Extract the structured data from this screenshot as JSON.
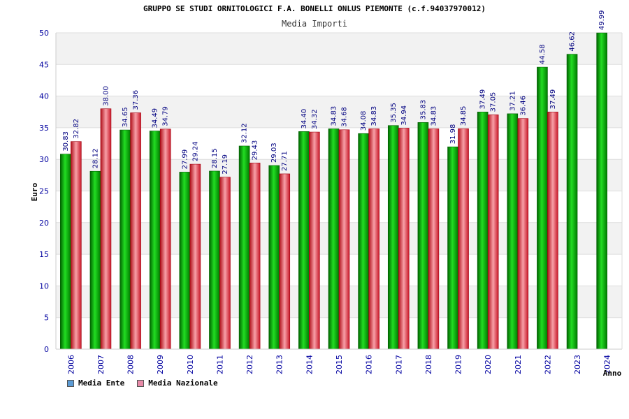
{
  "chart_data": {
    "type": "bar",
    "title": "GRUPPO SE STUDI ORNITOLOGICI F.A. BONELLI ONLUS PIEMONTE (c.f.94037970012)",
    "subtitle": "Media Importi",
    "ylabel": "Euro",
    "xlabel": "Anno",
    "ylim": [
      0,
      50
    ],
    "yticks": [
      0,
      5,
      10,
      15,
      20,
      25,
      30,
      35,
      40,
      45,
      50
    ],
    "categories": [
      "2006",
      "2007",
      "2008",
      "2009",
      "2010",
      "2011",
      "2012",
      "2013",
      "2014",
      "2015",
      "2016",
      "2017",
      "2018",
      "2019",
      "2020",
      "2021",
      "2022",
      "2023",
      "2024"
    ],
    "series": [
      {
        "name": "Media Ente",
        "values": [
          30.83,
          28.12,
          34.65,
          34.49,
          27.99,
          28.15,
          32.12,
          29.03,
          34.4,
          34.83,
          34.08,
          35.35,
          35.83,
          31.98,
          37.49,
          37.21,
          44.58,
          46.62,
          49.99
        ],
        "labels": [
          "30.83",
          "28.12",
          "34.65",
          "34.49",
          "27.99",
          "28.15",
          "32.12",
          "29.03",
          "34.40",
          "34.83",
          "34.08",
          "35.35",
          "35.83",
          "31.98",
          "37.49",
          "37.21",
          "44.58",
          "46.62",
          "49.99"
        ]
      },
      {
        "name": "Media Nazionale",
        "values": [
          32.82,
          38.0,
          37.36,
          34.79,
          29.24,
          27.19,
          29.43,
          27.71,
          34.32,
          34.68,
          34.83,
          34.94,
          34.83,
          34.85,
          37.05,
          36.46,
          37.49,
          null,
          null
        ],
        "labels": [
          "32.82",
          "38.00",
          "37.36",
          "34.79",
          "29.24",
          "27.19",
          "29.43",
          "27.71",
          "34.32",
          "34.68",
          "34.83",
          "34.94",
          "34.83",
          "34.85",
          "37.05",
          "36.46",
          "37.49",
          null,
          null
        ]
      }
    ],
    "legend": [
      {
        "name": "Media Ente",
        "color": "#5b9bd5"
      },
      {
        "name": "Media Nazionale",
        "color": "#e88aa8"
      }
    ],
    "bar_colors": {
      "ente": "#00a800",
      "nazionale": "#e02030"
    }
  }
}
